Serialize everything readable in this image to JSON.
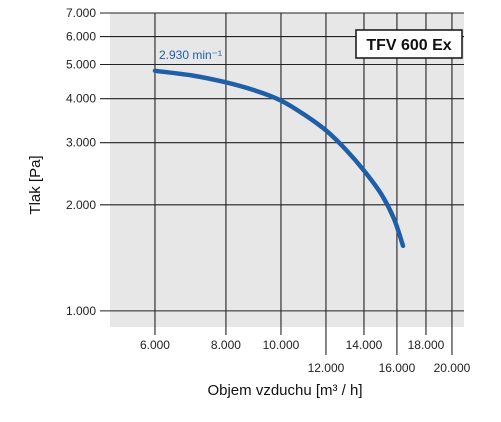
{
  "chart_data": {
    "type": "line",
    "title": "TFV 600 Ex",
    "xlabel": "Objem vzduchu [m³ / h]",
    "ylabel": "Tlak [Pa]",
    "x_scale": "log",
    "y_scale": "log",
    "xlim": [
      5000,
      21000
    ],
    "ylim": [
      900,
      7000
    ],
    "x_ticks": [
      {
        "value": 6000,
        "label": "6.000",
        "row": 0
      },
      {
        "value": 8000,
        "label": "8.000",
        "row": 0
      },
      {
        "value": 10000,
        "label": "10.000",
        "row": 0
      },
      {
        "value": 12000,
        "label": "12.000",
        "row": 1
      },
      {
        "value": 14000,
        "label": "14.000",
        "row": 0
      },
      {
        "value": 16000,
        "label": "16.000",
        "row": 1
      },
      {
        "value": 18000,
        "label": "18.000",
        "row": 0
      },
      {
        "value": 20000,
        "label": "20.000",
        "row": 1
      }
    ],
    "y_ticks": [
      {
        "value": 1000,
        "label": "1.000"
      },
      {
        "value": 2000,
        "label": "2.000"
      },
      {
        "value": 3000,
        "label": "3.000"
      },
      {
        "value": 4000,
        "label": "4.000"
      },
      {
        "value": 5000,
        "label": "5.000"
      },
      {
        "value": 6000,
        "label": "6.000"
      },
      {
        "value": 7000,
        "label": "7.000"
      }
    ],
    "grid": true,
    "series": [
      {
        "name": "2.930 min⁻¹",
        "color": "#1f5fa8",
        "points": [
          [
            6000,
            4800
          ],
          [
            7000,
            4650
          ],
          [
            8000,
            4450
          ],
          [
            9000,
            4220
          ],
          [
            10000,
            3950
          ],
          [
            11000,
            3600
          ],
          [
            12000,
            3250
          ],
          [
            13000,
            2870
          ],
          [
            14000,
            2500
          ],
          [
            15000,
            2150
          ],
          [
            15800,
            1830
          ],
          [
            16400,
            1530
          ]
        ]
      }
    ]
  }
}
